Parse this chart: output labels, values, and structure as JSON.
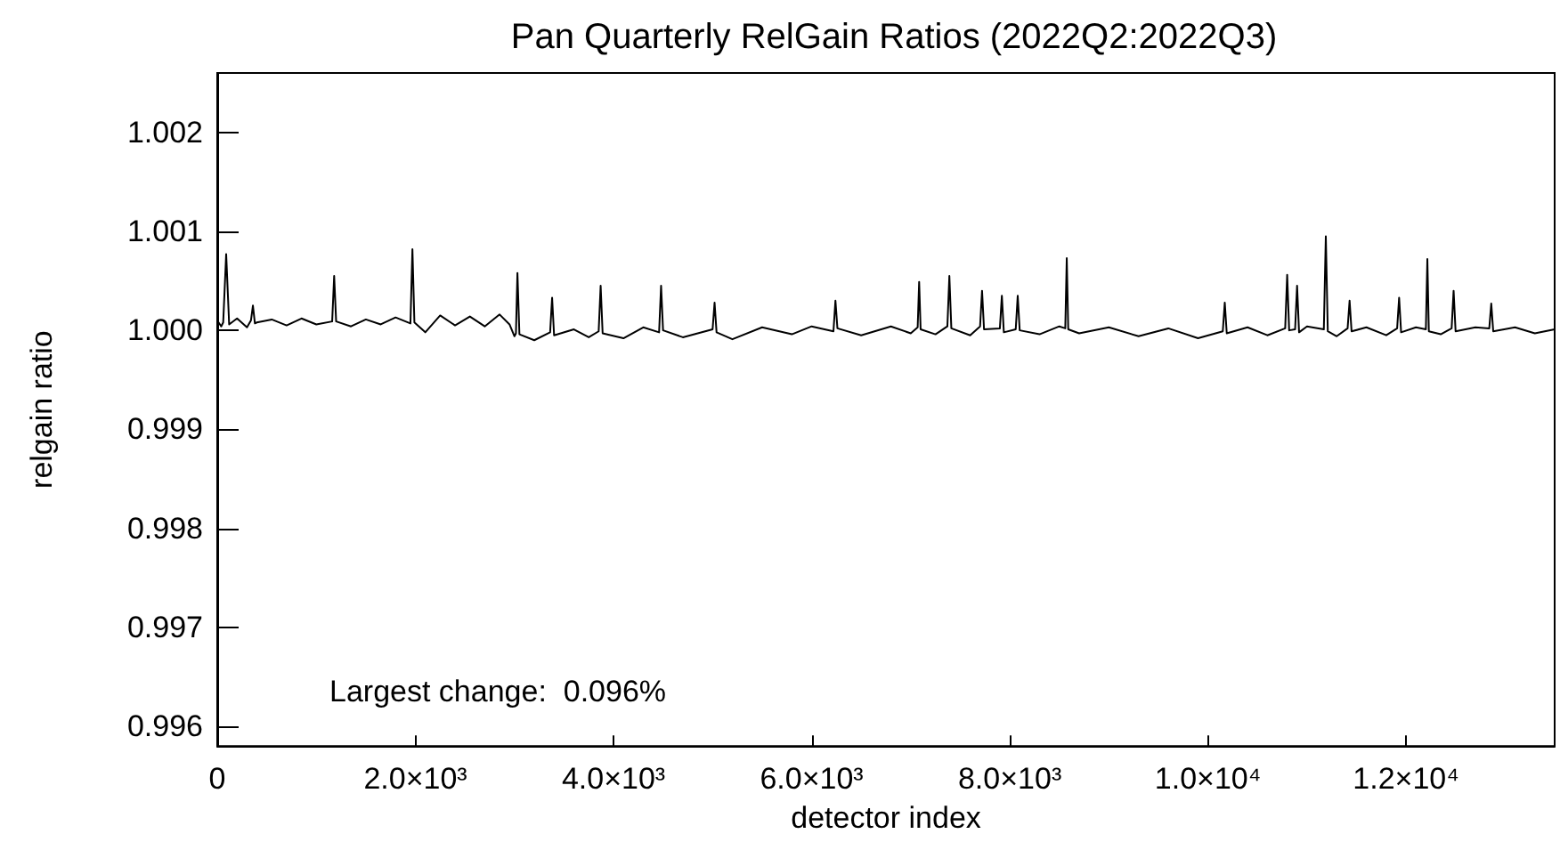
{
  "chart_data": {
    "type": "line",
    "title": "Pan Quarterly RelGain Ratios (2022Q2:2022Q3)",
    "xlabel": "detector index",
    "ylabel": "relgain ratio",
    "annotations": [
      "Largest change:  0.096%"
    ],
    "xlim": [
      0,
      13500
    ],
    "xticks": [
      0,
      {
        "value": 2000,
        "label": "2.0×10³"
      },
      {
        "value": 4000,
        "label": "4.0×10³"
      },
      {
        "value": 6000,
        "label": "6.0×10³"
      },
      {
        "value": 8000,
        "label": "8.0×10³"
      },
      {
        "value": 10000,
        "label": "1.0×10⁴"
      },
      {
        "value": 12000,
        "label": "1.2×10⁴"
      }
    ],
    "ylim": [
      0.9958,
      1.0026
    ],
    "yticks": [
      {
        "value": 0.996,
        "label": "0.996"
      },
      {
        "value": 0.997,
        "label": "0.997"
      },
      {
        "value": 0.998,
        "label": "0.998"
      },
      {
        "value": 0.999,
        "label": "0.999"
      },
      {
        "value": 1.0,
        "label": "1.000"
      },
      {
        "value": 1.001,
        "label": "1.001"
      },
      {
        "value": 1.002,
        "label": "1.002"
      }
    ],
    "grid": false,
    "marker": "none",
    "line_style": "solid",
    "series": [
      {
        "color": "#000000",
        "x": [
          0,
          40,
          60,
          90,
          120,
          200,
          300,
          340,
          360,
          380,
          400,
          550,
          700,
          850,
          1000,
          1160,
          1180,
          1200,
          1350,
          1500,
          1650,
          1800,
          1950,
          1970,
          1990,
          2100,
          2250,
          2400,
          2550,
          2700,
          2850,
          2950,
          3000,
          3015,
          3030,
          3050,
          3200,
          3360,
          3380,
          3400,
          3600,
          3750,
          3850,
          3870,
          3890,
          4100,
          4300,
          4460,
          4480,
          4500,
          4700,
          5000,
          5020,
          5040,
          5200,
          5500,
          5800,
          6000,
          6220,
          6240,
          6260,
          6500,
          6800,
          7000,
          7070,
          7085,
          7100,
          7250,
          7370,
          7390,
          7410,
          7600,
          7700,
          7720,
          7740,
          7900,
          7920,
          7940,
          8060,
          8080,
          8100,
          8300,
          8500,
          8560,
          8575,
          8590,
          8700,
          9000,
          9300,
          9600,
          9900,
          10150,
          10170,
          10190,
          10400,
          10600,
          10780,
          10800,
          10820,
          10880,
          10900,
          10920,
          11000,
          11170,
          11190,
          11210,
          11300,
          11410,
          11430,
          11450,
          11600,
          11800,
          11910,
          11930,
          11950,
          12100,
          12200,
          12215,
          12230,
          12350,
          12460,
          12480,
          12500,
          12700,
          12840,
          12860,
          12880,
          13100,
          13300,
          13500
        ],
        "values": [
          1.0001,
          1.00004,
          1.00008,
          1.00077,
          1.00006,
          1.00012,
          1.00003,
          1.0001,
          1.00025,
          1.00007,
          1.00008,
          1.00011,
          1.00005,
          1.00012,
          1.00006,
          1.00009,
          1.00055,
          1.00009,
          1.00004,
          1.00011,
          1.00006,
          1.00013,
          1.00007,
          1.00082,
          1.00008,
          0.99998,
          1.00015,
          1.00005,
          1.00014,
          1.00004,
          1.00016,
          1.00006,
          0.99994,
          0.99997,
          1.00058,
          0.99996,
          0.9999,
          0.99998,
          1.00033,
          0.99995,
          1.00001,
          0.99993,
          0.99999,
          1.00045,
          0.99997,
          0.99992,
          1.00003,
          0.99998,
          1.00045,
          1.0,
          0.99993,
          1.00001,
          1.00028,
          0.99998,
          0.99991,
          1.00003,
          0.99996,
          1.00004,
          0.99999,
          1.0003,
          1.00002,
          0.99995,
          1.00004,
          0.99997,
          1.00003,
          1.00049,
          1.00001,
          0.99996,
          1.00004,
          1.00055,
          1.00002,
          0.99995,
          1.00004,
          1.0004,
          1.00001,
          1.00002,
          1.00035,
          0.99998,
          1.00001,
          1.00035,
          1.0,
          0.99996,
          1.00004,
          1.00002,
          1.00073,
          1.00001,
          0.99997,
          1.00003,
          0.99994,
          1.00002,
          0.99992,
          0.99999,
          1.00028,
          0.99997,
          1.00003,
          0.99995,
          1.00002,
          1.00056,
          1.0,
          1.00001,
          1.00045,
          0.99998,
          1.00004,
          1.00001,
          1.00095,
          0.99999,
          0.99994,
          1.00002,
          1.0003,
          0.99999,
          1.00003,
          0.99995,
          1.00002,
          1.00033,
          0.99998,
          1.00003,
          1.00001,
          1.00072,
          0.99999,
          0.99996,
          1.00002,
          1.0004,
          0.99999,
          1.00003,
          1.00002,
          1.00027,
          0.99999,
          1.00003,
          0.99997,
          1.00001
        ]
      }
    ]
  }
}
